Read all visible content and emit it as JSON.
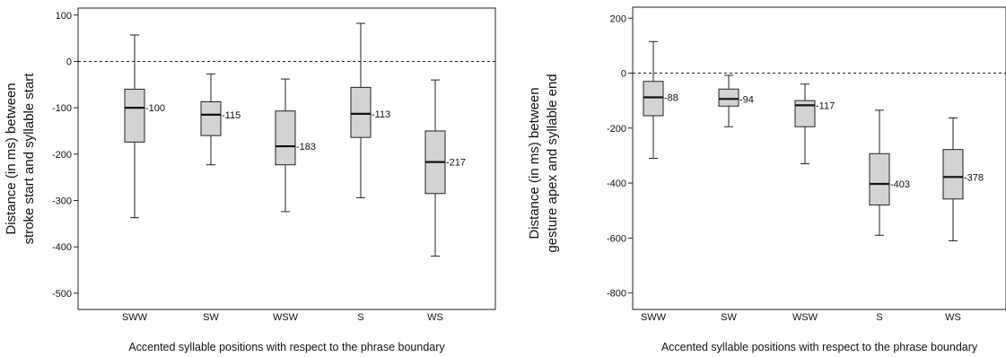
{
  "chart_data": [
    {
      "type": "boxplot",
      "ylabel_lines": [
        "Distance (in ms) between",
        "stroke start and syllable start"
      ],
      "xlabel": "Accented syllable positions with respect to the phrase boundary",
      "ylim": [
        -535,
        115
      ],
      "yticks": [
        100,
        0,
        -100,
        -200,
        -300,
        -400,
        -500
      ],
      "reference_line": 0,
      "categories": [
        "SWW",
        "SW",
        "WSW",
        "S",
        "WS"
      ],
      "boxes": [
        {
          "category": "SWW",
          "min": -337,
          "q1": -174,
          "median": -100,
          "q3": -60,
          "max": 57,
          "label": "-100"
        },
        {
          "category": "SW",
          "min": -223,
          "q1": -160,
          "median": -115,
          "q3": -87,
          "max": -27,
          "label": "-115"
        },
        {
          "category": "WSW",
          "min": -324,
          "q1": -223,
          "median": -183,
          "q3": -107,
          "max": -38,
          "label": "-183"
        },
        {
          "category": "S",
          "min": -294,
          "q1": -164,
          "median": -113,
          "q3": -56,
          "max": 82,
          "label": "-113"
        },
        {
          "category": "WS",
          "min": -420,
          "q1": -285,
          "median": -217,
          "q3": -150,
          "max": -40,
          "label": "-217"
        }
      ]
    },
    {
      "type": "boxplot",
      "ylabel_lines": [
        "Distance (in ms) between",
        "gesture apex and syllable end"
      ],
      "xlabel": "Accented syllable positions with respect to the phrase boundary",
      "ylim": [
        -860,
        240
      ],
      "yticks": [
        200,
        0,
        -200,
        -400,
        -600,
        -800
      ],
      "reference_line": 0,
      "categories": [
        "SWW",
        "SW",
        "WSW",
        "S",
        "WS"
      ],
      "boxes": [
        {
          "category": "SWW",
          "min": -310,
          "q1": -155,
          "median": -88,
          "q3": -30,
          "max": 115,
          "label": "-88"
        },
        {
          "category": "SW",
          "min": -195,
          "q1": -120,
          "median": -94,
          "q3": -58,
          "max": -8,
          "label": "-94"
        },
        {
          "category": "WSW",
          "min": -330,
          "q1": -195,
          "median": -117,
          "q3": -100,
          "max": -40,
          "label": "-117"
        },
        {
          "category": "S",
          "min": -590,
          "q1": -480,
          "median": -403,
          "q3": -293,
          "max": -135,
          "label": "-403"
        },
        {
          "category": "WS",
          "min": -610,
          "q1": -458,
          "median": -378,
          "q3": -278,
          "max": -163,
          "label": "-378"
        }
      ]
    }
  ]
}
